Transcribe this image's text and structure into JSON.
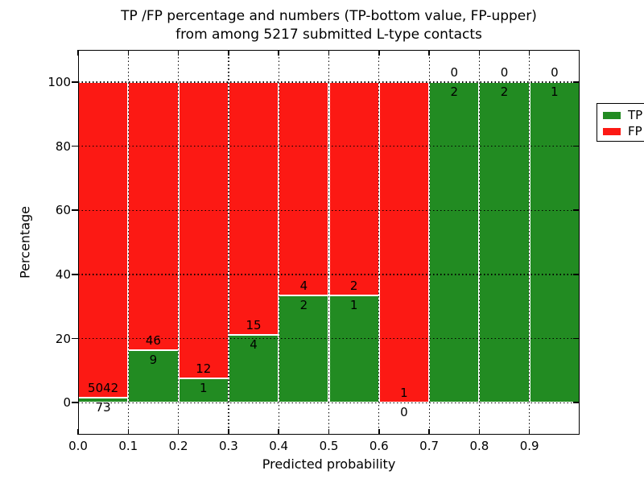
{
  "figure": {
    "title_line1": "TP /FP percentage and numbers (TP-bottom value, FP-upper)",
    "title_line2": "from among 5217 submitted L-type contacts"
  },
  "axes": {
    "xlabel": "Predicted probability",
    "ylabel": "Percentage",
    "xticks": [
      "0.0",
      "0.1",
      "0.2",
      "0.3",
      "0.4",
      "0.5",
      "0.6",
      "0.7",
      "0.8",
      "0.9"
    ],
    "yticks": [
      "0",
      "20",
      "40",
      "60",
      "80",
      "100"
    ]
  },
  "legend": {
    "position": "upper-right",
    "entries": [
      {
        "label": "TP",
        "color": "#228b22"
      },
      {
        "label": "FP",
        "color": "#fc1914"
      }
    ]
  },
  "chart_data": {
    "type": "bar",
    "stacked": true,
    "title": "TP /FP percentage and numbers (TP-bottom value, FP-upper) from among 5217 submitted L-type contacts",
    "xlabel": "Predicted probability",
    "ylabel": "Percentage",
    "xlim": [
      0.0,
      1.0
    ],
    "ylim": [
      -10,
      110
    ],
    "grid": true,
    "grid_style": "dotted, drawn above bars",
    "legend_position": "upper right",
    "total_submitted_contacts": 5217,
    "bin_edges": [
      0.0,
      0.1,
      0.2,
      0.3,
      0.4,
      0.5,
      0.6,
      0.7,
      0.8,
      0.9,
      1.0
    ],
    "series": [
      {
        "name": "TP",
        "color": "#228b22",
        "counts": [
          73,
          9,
          1,
          4,
          2,
          1,
          0,
          2,
          2,
          1
        ],
        "percent": [
          1.43,
          16.36,
          7.69,
          21.05,
          33.33,
          33.33,
          0,
          100,
          100,
          100
        ]
      },
      {
        "name": "FP",
        "color": "#fc1914",
        "counts": [
          5042,
          46,
          12,
          15,
          4,
          2,
          1,
          0,
          0,
          0
        ],
        "percent": [
          98.57,
          83.64,
          92.31,
          78.95,
          66.67,
          66.67,
          100,
          0,
          0,
          0
        ]
      }
    ]
  }
}
